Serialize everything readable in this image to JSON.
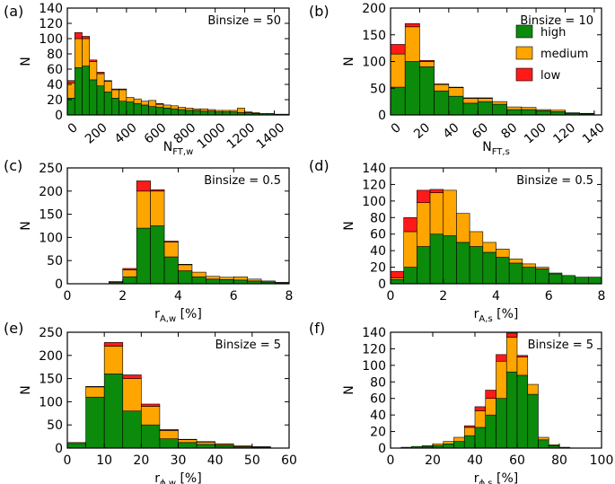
{
  "colors": {
    "high": "#0b8a0b",
    "medium": "#ffa500",
    "low": "#ff1a1a",
    "frame": "#000000"
  },
  "legend": {
    "high_label": "high",
    "medium_label": "medium",
    "low_label": "low"
  },
  "chart_data": [
    {
      "type": "bar",
      "stacked": true,
      "panel_label": "(a)",
      "annotation": "Binsize = 50",
      "ylabel": "N",
      "xlabel_main": "N",
      "xlabel_sub": "FT,w",
      "xlabel_suffix": "",
      "xlim": [
        0,
        1500
      ],
      "ylim": [
        0,
        140
      ],
      "xticks": [
        0,
        200,
        400,
        600,
        800,
        1000,
        1200,
        1400
      ],
      "yticks": [
        0,
        20,
        40,
        60,
        80,
        100,
        120,
        140
      ],
      "xtick_rotate": true,
      "bin_start": 0,
      "bin_width": 50,
      "series": [
        {
          "name": "high",
          "values": [
            22,
            62,
            64,
            46,
            38,
            30,
            22,
            18,
            17,
            15,
            13,
            11,
            10,
            9,
            8,
            7,
            6,
            6,
            5,
            5,
            4,
            4,
            4,
            3,
            3,
            2,
            2,
            2,
            1,
            1
          ]
        },
        {
          "name": "medium",
          "values": [
            20,
            38,
            36,
            24,
            16,
            14,
            11,
            15,
            6,
            6,
            5,
            8,
            4,
            4,
            4,
            3,
            3,
            2,
            3,
            2,
            2,
            2,
            2,
            6,
            1,
            1,
            0,
            0,
            0,
            0
          ]
        },
        {
          "name": "low",
          "values": [
            3,
            8,
            3,
            2,
            2,
            1,
            1,
            1,
            0,
            0,
            0,
            0,
            1,
            0,
            0,
            0,
            0,
            0,
            0,
            0,
            0,
            0,
            0,
            0,
            0,
            0,
            0,
            0,
            0,
            0
          ]
        }
      ]
    },
    {
      "type": "bar",
      "stacked": true,
      "panel_label": "(b)",
      "annotation": "Binsize = 10",
      "show_legend": true,
      "ylabel": "N",
      "xlabel_main": "N",
      "xlabel_sub": "FT,s",
      "xlabel_suffix": "",
      "xlim": [
        0,
        145
      ],
      "ylim": [
        0,
        200
      ],
      "xticks": [
        0,
        20,
        40,
        60,
        80,
        100,
        120,
        140
      ],
      "yticks": [
        0,
        50,
        100,
        150,
        200
      ],
      "xtick_rotate": true,
      "bin_start": 0,
      "bin_width": 10,
      "series": [
        {
          "name": "high",
          "values": [
            52,
            100,
            90,
            45,
            35,
            22,
            25,
            20,
            10,
            10,
            8,
            6,
            3,
            2
          ]
        },
        {
          "name": "medium",
          "values": [
            62,
            65,
            10,
            12,
            16,
            9,
            6,
            5,
            5,
            4,
            2,
            3,
            1,
            1
          ]
        },
        {
          "name": "low",
          "values": [
            18,
            6,
            2,
            1,
            1,
            1,
            1,
            0,
            0,
            0,
            0,
            0,
            0,
            0
          ]
        }
      ]
    },
    {
      "type": "bar",
      "stacked": true,
      "panel_label": "(c)",
      "annotation": "Binsize = 0.5",
      "ylabel": "N",
      "xlabel_main": "r",
      "xlabel_sub": "A,w",
      "xlabel_suffix": " [%]",
      "xlim": [
        0,
        8
      ],
      "ylim": [
        0,
        250
      ],
      "xticks": [
        0,
        2,
        4,
        6,
        8
      ],
      "yticks": [
        0,
        50,
        100,
        150,
        200,
        250
      ],
      "xtick_rotate": false,
      "bin_start": 0,
      "bin_width": 0.5,
      "series": [
        {
          "name": "high",
          "values": [
            0,
            0,
            0,
            3,
            15,
            120,
            125,
            58,
            28,
            15,
            10,
            9,
            8,
            6,
            4,
            2
          ]
        },
        {
          "name": "medium",
          "values": [
            0,
            0,
            0,
            2,
            15,
            80,
            75,
            32,
            13,
            10,
            6,
            5,
            7,
            4,
            2,
            1
          ]
        },
        {
          "name": "low",
          "values": [
            0,
            0,
            0,
            0,
            3,
            22,
            3,
            2,
            1,
            0,
            0,
            0,
            0,
            0,
            0,
            0
          ]
        }
      ]
    },
    {
      "type": "bar",
      "stacked": true,
      "panel_label": "(d)",
      "annotation": "Binsize = 0.5",
      "ylabel": "N",
      "xlabel_main": "r",
      "xlabel_sub": "A,s",
      "xlabel_suffix": " [%]",
      "xlim": [
        0,
        8
      ],
      "ylim": [
        0,
        140
      ],
      "xticks": [
        0,
        2,
        4,
        6,
        8
      ],
      "yticks": [
        0,
        20,
        40,
        60,
        80,
        100,
        120,
        140
      ],
      "xtick_rotate": false,
      "bin_start": 0,
      "bin_width": 0.5,
      "series": [
        {
          "name": "high",
          "values": [
            5,
            20,
            45,
            60,
            58,
            50,
            45,
            38,
            32,
            25,
            20,
            18,
            12,
            10,
            8,
            8
          ]
        },
        {
          "name": "medium",
          "values": [
            2,
            43,
            53,
            50,
            55,
            35,
            18,
            12,
            10,
            5,
            4,
            2,
            1,
            0,
            0,
            0
          ]
        },
        {
          "name": "low",
          "values": [
            8,
            17,
            15,
            4,
            0,
            0,
            0,
            0,
            0,
            0,
            0,
            0,
            0,
            0,
            0,
            0
          ]
        }
      ]
    },
    {
      "type": "bar",
      "stacked": true,
      "panel_label": "(e)",
      "annotation": "Binsize = 5",
      "ylabel": "N",
      "xlabel_main": "r",
      "xlabel_sub": "ϕ,w",
      "xlabel_suffix": " [%]",
      "xlim": [
        0,
        60
      ],
      "ylim": [
        0,
        250
      ],
      "xticks": [
        0,
        10,
        20,
        30,
        40,
        50,
        60
      ],
      "yticks": [
        0,
        50,
        100,
        150,
        200,
        250
      ],
      "xtick_rotate": false,
      "bin_start": 0,
      "bin_width": 5,
      "series": [
        {
          "name": "high",
          "values": [
            10,
            110,
            160,
            80,
            50,
            20,
            12,
            8,
            5,
            3,
            2
          ]
        },
        {
          "name": "medium",
          "values": [
            2,
            22,
            60,
            70,
            40,
            18,
            6,
            5,
            3,
            2,
            1
          ]
        },
        {
          "name": "low",
          "values": [
            0,
            1,
            8,
            8,
            5,
            2,
            1,
            1,
            1,
            0,
            0
          ]
        }
      ]
    },
    {
      "type": "bar",
      "stacked": true,
      "panel_label": "(f)",
      "annotation": "Binsize = 5",
      "ylabel": "N",
      "xlabel_main": "r",
      "xlabel_sub": "ϕ,s",
      "xlabel_suffix": " [%]",
      "xlim": [
        0,
        100
      ],
      "ylim": [
        0,
        140
      ],
      "xticks": [
        0,
        20,
        40,
        60,
        80,
        100
      ],
      "yticks": [
        0,
        20,
        40,
        60,
        80,
        100,
        120,
        140
      ],
      "xtick_rotate": false,
      "bin_start": 0,
      "bin_width": 5,
      "series": [
        {
          "name": "high",
          "values": [
            0,
            1,
            2,
            2,
            3,
            5,
            8,
            15,
            25,
            40,
            60,
            92,
            88,
            65,
            10,
            3,
            1,
            0,
            0,
            0
          ]
        },
        {
          "name": "medium",
          "values": [
            0,
            0,
            0,
            1,
            2,
            3,
            5,
            10,
            20,
            20,
            45,
            42,
            22,
            12,
            3,
            1,
            0,
            0,
            0,
            0
          ]
        },
        {
          "name": "low",
          "values": [
            0,
            0,
            0,
            0,
            0,
            0,
            0,
            2,
            5,
            10,
            8,
            5,
            2,
            0,
            0,
            0,
            0,
            0,
            0,
            0
          ]
        }
      ]
    }
  ]
}
